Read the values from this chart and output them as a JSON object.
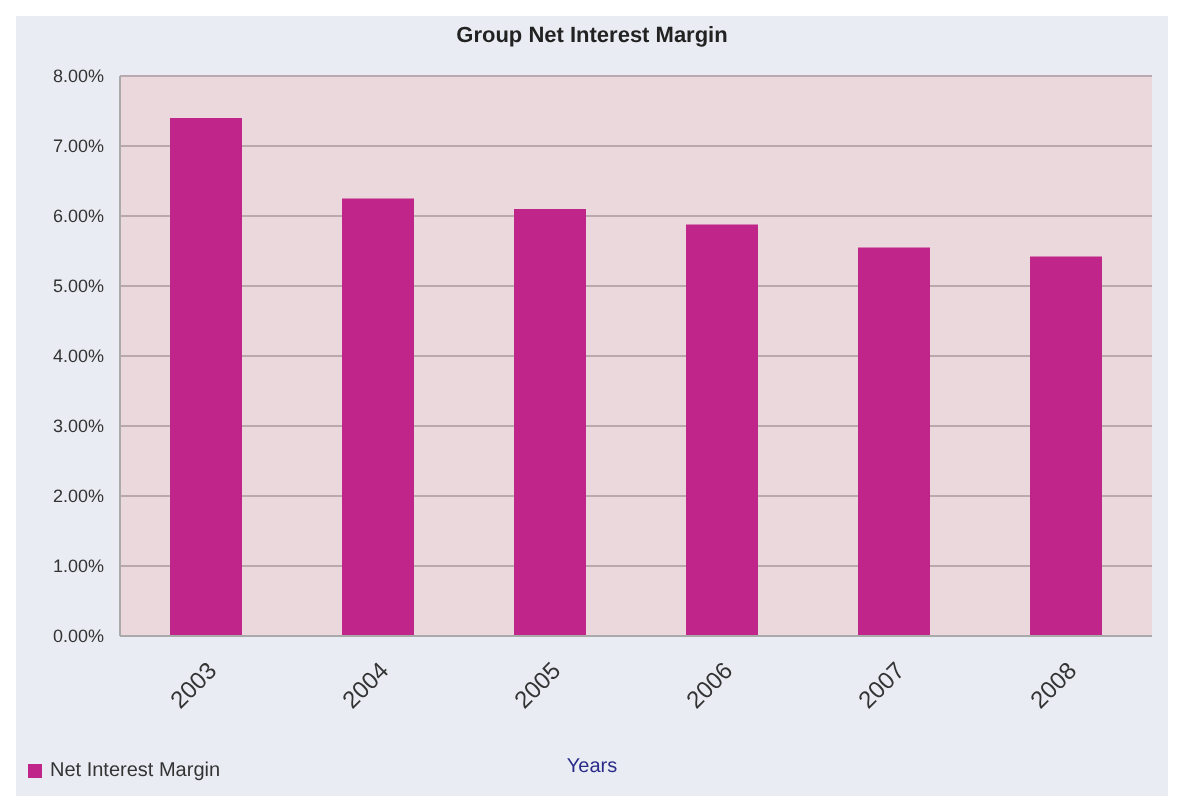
{
  "chart_data": {
    "type": "bar",
    "title": "Group Net Interest Margin",
    "xlabel": "Years",
    "categories": [
      "2003",
      "2004",
      "2005",
      "2006",
      "2007",
      "2008"
    ],
    "series": [
      {
        "name": "Net Interest Margin",
        "color": "#c0268a",
        "values": [
          7.4,
          6.25,
          6.1,
          5.88,
          5.55,
          5.42
        ]
      }
    ],
    "ylim": [
      0,
      8
    ],
    "yticks": [
      {
        "value": 0,
        "label": "0.00%"
      },
      {
        "value": 1,
        "label": "1.00%"
      },
      {
        "value": 2,
        "label": "2.00%"
      },
      {
        "value": 3,
        "label": "3.00%"
      },
      {
        "value": 4,
        "label": "4.00%"
      },
      {
        "value": 5,
        "label": "5.00%"
      },
      {
        "value": 6,
        "label": "6.00%"
      },
      {
        "value": 7,
        "label": "7.00%"
      },
      {
        "value": 8,
        "label": "8.00%"
      }
    ],
    "grid": "y",
    "legend": "bottom left"
  }
}
